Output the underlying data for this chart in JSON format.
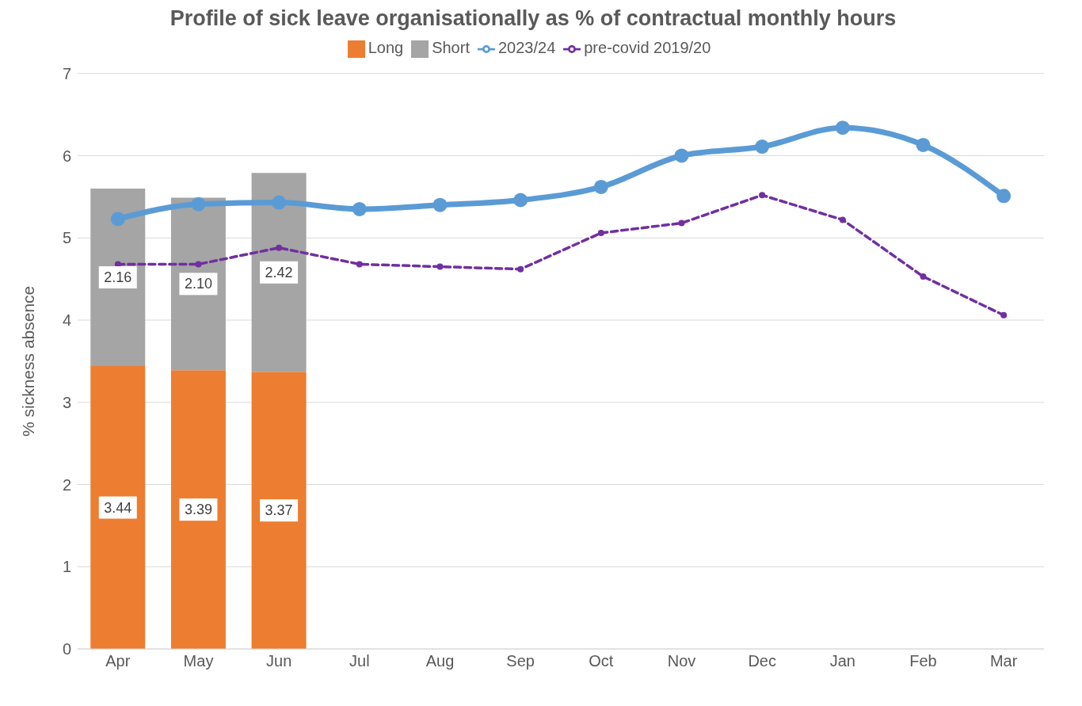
{
  "chart_data": {
    "type": "bar",
    "title": "Profile of sick leave organisationally as % of contractual monthly hours",
    "ylabel": "% sickness absence",
    "categories": [
      "Apr",
      "May",
      "Jun",
      "Jul",
      "Aug",
      "Sep",
      "Oct",
      "Nov",
      "Dec",
      "Jan",
      "Feb",
      "Mar"
    ],
    "stacked": true,
    "ylim": [
      0,
      7
    ],
    "yticks": [
      0,
      1,
      2,
      3,
      4,
      5,
      6,
      7
    ],
    "grid": "y",
    "legend": "top",
    "series": [
      {
        "name": "Long",
        "color": "#ed7d31",
        "values": [
          3.44,
          3.39,
          3.37,
          null,
          null,
          null,
          null,
          null,
          null,
          null,
          null,
          null
        ],
        "value_labels": [
          "3.44",
          "3.39",
          "3.37",
          null,
          null,
          null,
          null,
          null,
          null,
          null,
          null,
          null
        ]
      },
      {
        "name": "Short",
        "color": "#a5a5a5",
        "values": [
          2.16,
          2.1,
          2.42,
          null,
          null,
          null,
          null,
          null,
          null,
          null,
          null,
          null
        ],
        "value_labels": [
          "2.16",
          "2.10",
          "2.42",
          null,
          null,
          null,
          null,
          null,
          null,
          null,
          null,
          null
        ]
      },
      {
        "name": "2023/24",
        "type": "line",
        "color": "#5b9bd5",
        "marker": "circle",
        "line_style": "solid",
        "values": [
          5.23,
          5.41,
          5.43,
          5.35,
          5.4,
          5.46,
          5.62,
          6.0,
          6.11,
          6.34,
          6.13,
          5.51
        ]
      },
      {
        "name": "pre-covid 2019/20",
        "type": "line",
        "color": "#7030a0",
        "marker": "circle",
        "line_style": "dashed",
        "values": [
          4.68,
          4.68,
          4.88,
          4.68,
          4.65,
          4.62,
          5.06,
          5.18,
          5.52,
          5.22,
          4.53,
          4.06
        ]
      }
    ]
  }
}
